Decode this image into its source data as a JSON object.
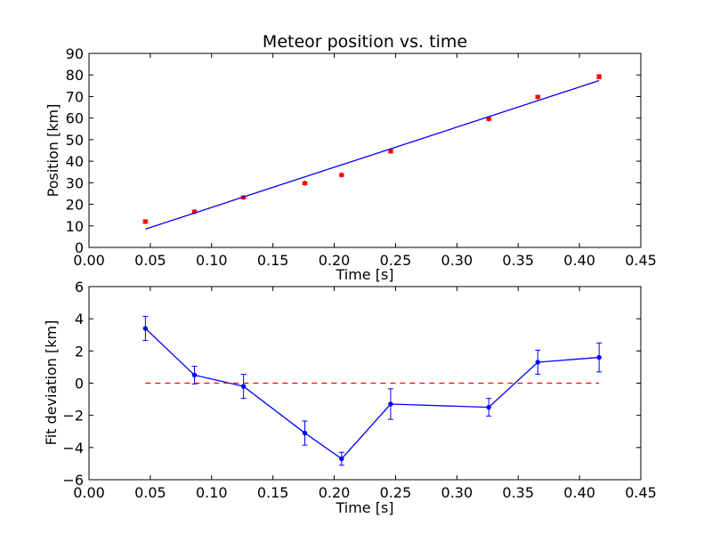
{
  "chart_data": [
    {
      "type": "scatter",
      "title": "Meteor position vs. time",
      "xlabel": "Time [s]",
      "ylabel": "Position [km]",
      "xlim": [
        0.0,
        0.45
      ],
      "ylim": [
        0,
        90
      ],
      "xticks": [
        "0.00",
        "0.05",
        "0.10",
        "0.15",
        "0.20",
        "0.25",
        "0.30",
        "0.35",
        "0.40",
        "0.45"
      ],
      "yticks": [
        "0",
        "10",
        "20",
        "30",
        "40",
        "50",
        "60",
        "70",
        "80",
        "90"
      ],
      "grid": false,
      "series": [
        {
          "kind": "errorbar-points",
          "color": "#ff0000",
          "x": [
            0.046,
            0.086,
            0.126,
            0.176,
            0.206,
            0.246,
            0.326,
            0.366,
            0.416
          ],
          "y": [
            12.0,
            16.6,
            23.2,
            29.8,
            33.6,
            44.6,
            59.6,
            69.8,
            79.2
          ],
          "yerr": [
            0.8,
            0.6,
            0.6,
            0.6,
            0.6,
            0.8,
            0.6,
            0.6,
            0.9
          ]
        },
        {
          "kind": "line",
          "color": "#0000ff",
          "x": [
            0.046,
            0.416
          ],
          "y": [
            8.5,
            77.4
          ]
        }
      ]
    },
    {
      "type": "line",
      "title": "",
      "xlabel": "Time [s]",
      "ylabel": "Fit deviation [km]",
      "xlim": [
        0.0,
        0.45
      ],
      "ylim": [
        -6,
        6
      ],
      "xticks": [
        "0.00",
        "0.05",
        "0.10",
        "0.15",
        "0.20",
        "0.25",
        "0.30",
        "0.35",
        "0.40",
        "0.45"
      ],
      "yticks": [
        "−6",
        "−4",
        "−2",
        "0",
        "2",
        "4",
        "6"
      ],
      "grid": false,
      "series": [
        {
          "kind": "errorbar-line",
          "color": "#0000ff",
          "x": [
            0.046,
            0.086,
            0.126,
            0.176,
            0.206,
            0.246,
            0.326,
            0.366,
            0.416
          ],
          "y": [
            3.4,
            0.5,
            -0.2,
            -3.1,
            -4.7,
            -1.3,
            -1.5,
            1.3,
            1.6
          ],
          "yerr": [
            0.75,
            0.55,
            0.75,
            0.75,
            0.4,
            0.95,
            0.55,
            0.75,
            0.9
          ]
        },
        {
          "kind": "dashed-line",
          "color": "#ff0000",
          "x": [
            0.046,
            0.416
          ],
          "y": [
            0,
            0
          ]
        }
      ]
    }
  ]
}
